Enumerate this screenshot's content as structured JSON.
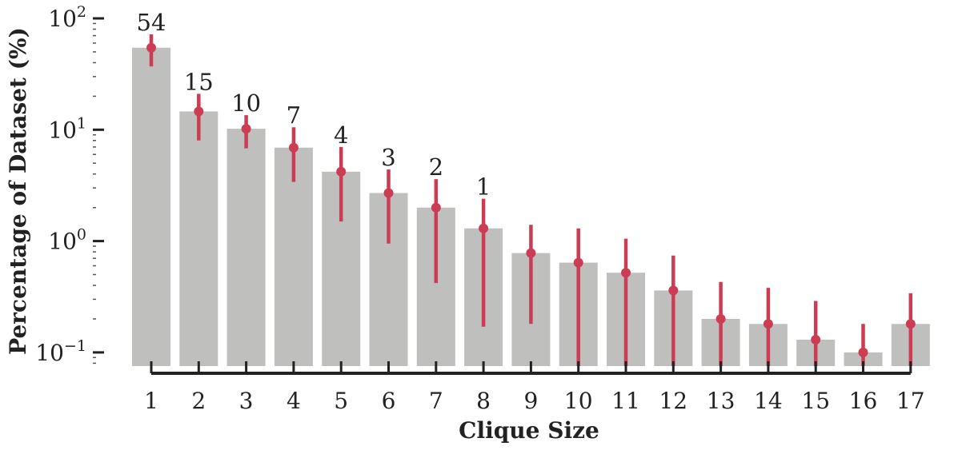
{
  "chart_data": {
    "type": "bar",
    "xlabel": "Clique Size",
    "ylabel": "Percentage of Dataset (%)",
    "yscale": "log",
    "ylim": [
      0.075,
      100
    ],
    "yticks": [
      {
        "value": 100,
        "base": "10",
        "exp": "2"
      },
      {
        "value": 10,
        "base": "10",
        "exp": "1"
      },
      {
        "value": 1,
        "base": "10",
        "exp": "0"
      },
      {
        "value": 0.1,
        "base": "10",
        "exp": "−1"
      }
    ],
    "categories": [
      "1",
      "2",
      "3",
      "4",
      "5",
      "6",
      "7",
      "8",
      "9",
      "10",
      "11",
      "12",
      "13",
      "14",
      "15",
      "16",
      "17"
    ],
    "values": [
      54.5,
      14.6,
      10.2,
      6.9,
      4.2,
      2.7,
      2.0,
      1.3,
      0.78,
      0.64,
      0.52,
      0.36,
      0.2,
      0.18,
      0.13,
      0.1,
      0.18
    ],
    "error_low": [
      37,
      8,
      6.8,
      3.4,
      1.5,
      0.95,
      0.42,
      0.17,
      0.18,
      0.075,
      0.075,
      0.075,
      0.075,
      0.075,
      0.075,
      0.075,
      0.075
    ],
    "error_high": [
      72,
      21,
      13.5,
      10.5,
      7,
      4.4,
      3.6,
      2.4,
      1.4,
      1.3,
      1.05,
      0.74,
      0.43,
      0.38,
      0.29,
      0.18,
      0.34
    ],
    "data_labels": [
      "54",
      "15",
      "10",
      "7",
      "4",
      "3",
      "2",
      "1",
      "",
      "",
      "",
      "",
      "",
      "",
      "",
      "",
      ""
    ],
    "colors": {
      "bar": "#bfc0bd",
      "error": "#cc3d54",
      "axis": "#222222"
    },
    "grid": false
  }
}
